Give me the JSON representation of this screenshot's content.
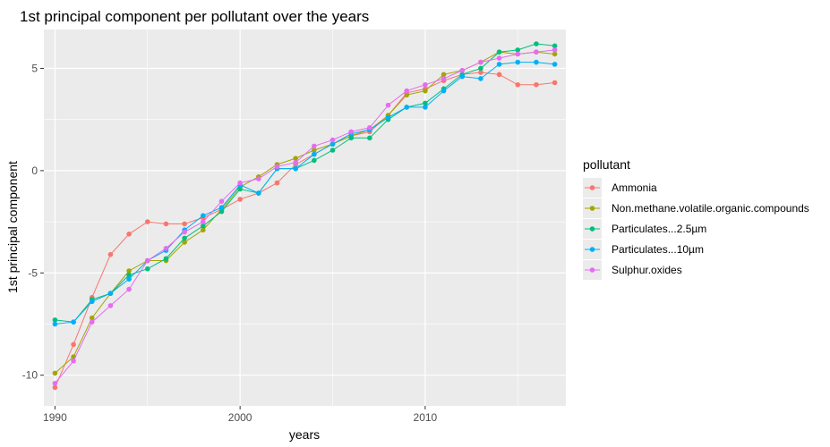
{
  "chart_data": {
    "type": "line",
    "title": "1st principal component per pollutant over the years",
    "xlabel": "years",
    "ylabel": "1st principal component",
    "xlim": [
      1989.4,
      2017.6
    ],
    "ylim": [
      -11.5,
      6.9
    ],
    "x_ticks": [
      1990,
      2000,
      2010
    ],
    "x_tick_labels": [
      "1990",
      "2000",
      "2010"
    ],
    "y_ticks": [
      -10,
      -5,
      0,
      5
    ],
    "y_tick_labels": [
      "-10",
      "-5",
      "0",
      "5"
    ],
    "grid": true,
    "legend_position": "right",
    "legend_title": "pollutant",
    "x": [
      1990,
      1991,
      1992,
      1993,
      1994,
      1995,
      1996,
      1997,
      1998,
      1999,
      2000,
      2001,
      2002,
      2003,
      2004,
      2005,
      2006,
      2007,
      2008,
      2009,
      2010,
      2011,
      2012,
      2013,
      2014,
      2015,
      2016,
      2017
    ],
    "series": [
      {
        "name": "Ammonia",
        "color": "#F8766D",
        "values": [
          -10.6,
          -8.5,
          -6.2,
          -4.1,
          -3.1,
          -2.5,
          -2.6,
          -2.6,
          -2.3,
          -1.9,
          -1.4,
          -1.1,
          -0.6,
          0.3,
          0.8,
          1.3,
          1.7,
          1.9,
          2.7,
          3.8,
          4.0,
          4.4,
          4.7,
          4.8,
          4.7,
          4.2,
          4.2,
          4.3
        ]
      },
      {
        "name": "Non.methane.volatile.organic.compounds",
        "color": "#A3A500",
        "values": [
          -9.9,
          -9.1,
          -7.2,
          -6.0,
          -4.9,
          -4.4,
          -4.4,
          -3.5,
          -2.9,
          -1.9,
          -0.8,
          -0.3,
          0.3,
          0.6,
          1.0,
          1.3,
          1.7,
          2.0,
          2.7,
          3.7,
          3.9,
          4.7,
          4.9,
          5.3,
          5.8,
          5.7,
          5.8,
          5.7
        ]
      },
      {
        "name": "Particulates...2.5µm",
        "color": "#00BF7D",
        "values": [
          -7.3,
          -7.4,
          -6.3,
          -6.0,
          -5.1,
          -4.8,
          -4.3,
          -3.3,
          -2.7,
          -2.0,
          -0.9,
          -1.1,
          0.1,
          0.1,
          0.5,
          1.0,
          1.6,
          1.6,
          2.5,
          3.1,
          3.3,
          4.0,
          4.7,
          5.0,
          5.8,
          5.9,
          6.2,
          6.1
        ]
      },
      {
        "name": "Particulates...10µm",
        "color": "#00B0F6",
        "values": [
          -7.5,
          -7.4,
          -6.4,
          -6.0,
          -5.3,
          -4.4,
          -3.9,
          -2.9,
          -2.2,
          -1.8,
          -0.7,
          -1.1,
          0.1,
          0.1,
          0.8,
          1.3,
          1.8,
          2.0,
          2.6,
          3.1,
          3.1,
          3.9,
          4.6,
          4.5,
          5.2,
          5.3,
          5.3,
          5.2
        ]
      },
      {
        "name": "Sulphur.oxides",
        "color": "#E76BF3",
        "values": [
          -10.4,
          -9.3,
          -7.4,
          -6.6,
          -5.8,
          -4.4,
          -3.8,
          -3.0,
          -2.5,
          -1.5,
          -0.6,
          -0.4,
          0.2,
          0.4,
          1.2,
          1.5,
          1.9,
          2.1,
          3.2,
          3.9,
          4.2,
          4.5,
          4.9,
          5.3,
          5.5,
          5.7,
          5.8,
          5.9
        ]
      }
    ],
    "style": {
      "panel_background": "#EBEBEB",
      "grid_color": "#FFFFFF"
    }
  }
}
